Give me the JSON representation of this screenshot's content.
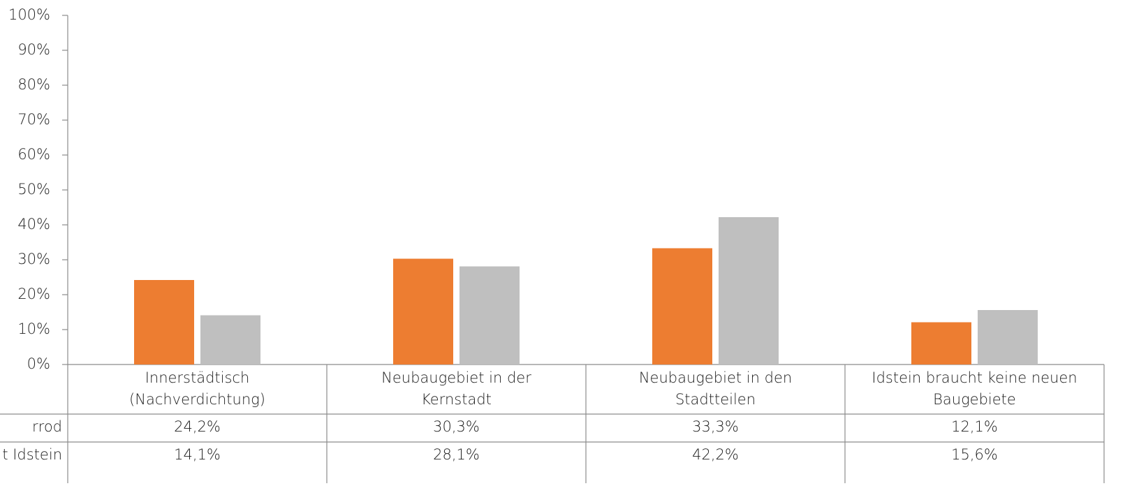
{
  "chart_data": {
    "type": "bar",
    "categories": [
      "Innerstädtisch\n(Nachverdichtung)",
      "Neubaugebiet in der\nKernstadt",
      "Neubaugebiet in den\nStadtteilen",
      "Idstein braucht keine neuen\nBaugebiete"
    ],
    "series": [
      {
        "name": "rrod",
        "color": "#ED7D31",
        "values": [
          24.2,
          30.3,
          33.3,
          12.1
        ],
        "value_labels": [
          "24,2%",
          "30,3%",
          "33,3%",
          "12,1%"
        ]
      },
      {
        "name": "t Idstein",
        "color": "#BFBFBF",
        "values": [
          14.1,
          28.1,
          42.2,
          15.6
        ],
        "value_labels": [
          "14,1%",
          "28,1%",
          "42,2%",
          "15,6%"
        ]
      }
    ],
    "ylim": [
      0,
      100
    ],
    "yticks": [
      {
        "value": 0,
        "label": "0%"
      },
      {
        "value": 10,
        "label": "10%"
      },
      {
        "value": 20,
        "label": "20%"
      },
      {
        "value": 30,
        "label": "30%"
      },
      {
        "value": 40,
        "label": "40%"
      },
      {
        "value": 50,
        "label": "50%"
      },
      {
        "value": 60,
        "label": "60%"
      },
      {
        "value": 70,
        "label": "70%"
      },
      {
        "value": 80,
        "label": "80%"
      },
      {
        "value": 90,
        "label": "90%"
      },
      {
        "value": 100,
        "label": "100%"
      }
    ],
    "data_table": true
  }
}
